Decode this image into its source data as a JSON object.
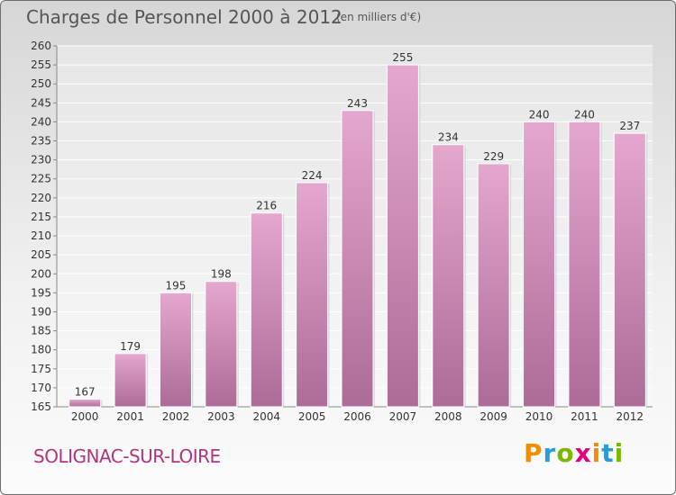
{
  "header": {
    "title": "Charges de Personnel 2000 à 2012",
    "unit": "(en milliers d'€)"
  },
  "footer": {
    "city": "SOLIGNAC-SUR-LOIRE",
    "brand_letters": [
      "P",
      "r",
      "o",
      "x",
      "i",
      "t",
      "i"
    ],
    "brand_colors": [
      "#f28c00",
      "#2a9bd7",
      "#7ab800",
      "#e3007e",
      "#f28c00",
      "#2a9bd7",
      "#7ab800"
    ]
  },
  "colors": {
    "bar_top": "#e4a7cd",
    "bar_bottom": "#ad6b98",
    "city": "#b0357a"
  },
  "chart_data": {
    "type": "bar",
    "categories": [
      "2000",
      "2001",
      "2002",
      "2003",
      "2004",
      "2005",
      "2006",
      "2007",
      "2008",
      "2009",
      "2010",
      "2011",
      "2012"
    ],
    "values": [
      167,
      179,
      195,
      198,
      216,
      224,
      243,
      255,
      234,
      229,
      240,
      240,
      237
    ],
    "data_labels": [
      "167",
      "179",
      "195",
      "198",
      "216",
      "224",
      "243",
      "255",
      "234",
      "229",
      "240",
      "240",
      "237"
    ],
    "title": "Charges de Personnel 2000 à 2012",
    "xlabel": "",
    "ylabel": "",
    "ylim": [
      165,
      260
    ],
    "yticks": [
      165,
      170,
      175,
      180,
      185,
      190,
      195,
      200,
      205,
      210,
      215,
      220,
      225,
      230,
      235,
      240,
      245,
      250,
      255,
      260
    ],
    "grid": true,
    "legend": "none"
  }
}
